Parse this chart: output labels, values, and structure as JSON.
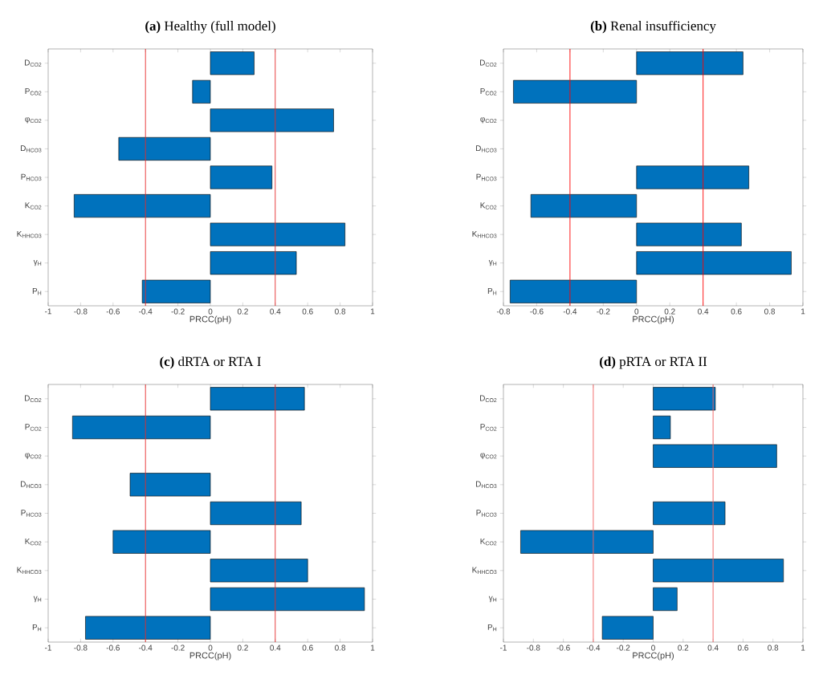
{
  "chart_data": [
    {
      "type": "bar",
      "orientation": "horizontal",
      "title": "**(a)** Healthy (full model)",
      "xlabel": "PRCC(pH)",
      "categories": [
        "D$_{CO2}$",
        "P$_{CO2}$",
        "φ$_{CO2}$",
        "D$_{HCO3}$",
        "P$_{HCO3}$",
        "K$_{CO2}$",
        "K$_{HHCO3}$",
        "γ$_{H}$",
        "P$_{H}$"
      ],
      "values": [
        0.27,
        -0.11,
        0.76,
        -0.565,
        0.38,
        -0.84,
        0.83,
        0.53,
        -0.42
      ],
      "color": "#0072bd",
      "xlim": [
        -1,
        1
      ],
      "xticks": [
        -1,
        -0.8,
        -0.6,
        -0.4,
        -0.2,
        0,
        0.2,
        0.4,
        0.6,
        0.8,
        1
      ],
      "ref_lines": [
        {
          "axis": "x",
          "value": -0.4,
          "color": "#e52a2a"
        },
        {
          "axis": "x",
          "value": 0.4,
          "color": "#e52a2a"
        }
      ]
    },
    {
      "type": "bar",
      "orientation": "horizontal",
      "title": "**(b)** Renal insufficiency",
      "xlabel": "PRCC(pH)",
      "categories": [
        "D$_{CO2}$",
        "P$_{CO2}$",
        "φ$_{CO2}$",
        "D$_{HCO3}$",
        "P$_{HCO3}$",
        "K$_{CO2}$",
        "K$_{HHCO3}$",
        "γ$_{H}$",
        "P$_{H}$"
      ],
      "values": [
        0.64,
        -0.74,
        null,
        null,
        0.675,
        -0.635,
        0.63,
        0.93,
        -0.76
      ],
      "color": "#0072bd",
      "xlim": [
        -0.8,
        1
      ],
      "xticks": [
        -0.8,
        -0.6,
        -0.4,
        -0.2,
        0,
        0.2,
        0.4,
        0.6,
        0.8,
        1
      ],
      "ref_lines": [
        {
          "axis": "x",
          "value": -0.4,
          "color": "#ff0000"
        },
        {
          "axis": "x",
          "value": 0.4,
          "color": "#ff0000"
        }
      ]
    },
    {
      "type": "bar",
      "orientation": "horizontal",
      "title": "**(c)** dRTA or RTA I",
      "xlabel": "PRCC(pH)",
      "categories": [
        "D$_{CO2}$",
        "P$_{CO2}$",
        "φ$_{CO2}$",
        "D$_{HCO3}$",
        "P$_{HCO3}$",
        "K$_{CO2}$",
        "K$_{HHCO3}$",
        "γ$_{H}$",
        "P$_{H}$"
      ],
      "values": [
        0.58,
        -0.85,
        null,
        -0.495,
        0.56,
        -0.6,
        0.6,
        0.95,
        -0.77
      ],
      "color": "#0072bd",
      "xlim": [
        -1,
        1
      ],
      "xticks": [
        -1,
        -0.8,
        -0.6,
        -0.4,
        -0.2,
        0,
        0.2,
        0.4,
        0.6,
        0.8,
        1
      ],
      "ref_lines": [
        {
          "axis": "x",
          "value": -0.4,
          "color": "#e52a2a"
        },
        {
          "axis": "x",
          "value": 0.4,
          "color": "#e52a2a"
        }
      ]
    },
    {
      "type": "bar",
      "orientation": "horizontal",
      "title": "**(d)** pRTA or RTA II",
      "xlabel": "PRCC(pH)",
      "categories": [
        "D$_{CO2}$",
        "P$_{CO2}$",
        "φ$_{CO2}$",
        "D$_{HCO3}$",
        "P$_{HCO3}$",
        "K$_{CO2}$",
        "K$_{HHCO3}$",
        "γ$_{H}$",
        "P$_{H}$"
      ],
      "values": [
        0.415,
        0.115,
        0.825,
        null,
        0.48,
        -0.885,
        0.87,
        0.16,
        -0.34
      ],
      "color": "#0072bd",
      "xlim": [
        -1,
        1
      ],
      "xticks": [
        -1,
        -0.8,
        -0.6,
        -0.4,
        -0.2,
        0,
        0.2,
        0.4,
        0.6,
        0.8,
        1
      ],
      "ref_lines": [
        {
          "axis": "x",
          "value": -0.4,
          "color": "#f06060"
        },
        {
          "axis": "x",
          "value": 0.4,
          "color": "#f06060"
        }
      ]
    }
  ]
}
